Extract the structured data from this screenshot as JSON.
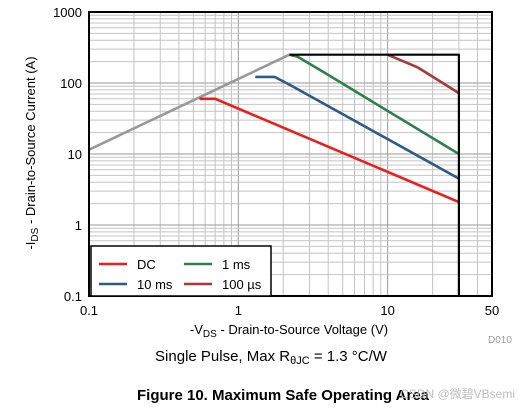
{
  "chart_data": {
    "type": "line",
    "x_scale": "log",
    "y_scale": "log",
    "xlim": [
      0.1,
      50
    ],
    "ylim": [
      0.1,
      1000
    ],
    "grid": true,
    "legend_placement": "bottom-left",
    "x_ticks": [
      {
        "value": 0.1,
        "label": "0.1"
      },
      {
        "value": 1,
        "label": "1"
      },
      {
        "value": 10,
        "label": "10"
      },
      {
        "value": 50,
        "label": "50"
      }
    ],
    "y_ticks": [
      {
        "value": 0.1,
        "label": "0.1"
      },
      {
        "value": 1,
        "label": "1"
      },
      {
        "value": 10,
        "label": "10"
      },
      {
        "value": 100,
        "label": "100"
      },
      {
        "value": 1000,
        "label": "1000"
      }
    ],
    "xlabel": {
      "pre": "-V",
      "sub": "DS",
      "post": " - Drain-to-Source Voltage (V)"
    },
    "ylabel": {
      "pre": "-I",
      "sub": "DS",
      "post": " - Drain-to-Source Current (A)"
    },
    "caption": {
      "pre": "Single Pulse, Max R",
      "sub": "θJC",
      "post": " = 1.3 °C/W"
    },
    "code": "D010",
    "figure_title": "Figure 10. Maximum Safe Operating Area",
    "series": [
      {
        "name": "",
        "color": "#999999",
        "points": [
          [
            0.1,
            11.5
          ],
          [
            2.2,
            250
          ]
        ]
      },
      {
        "name": "DC",
        "color": "#e8201b",
        "points": [
          [
            0.55,
            60
          ],
          [
            0.7,
            60
          ],
          [
            30,
            2.1
          ]
        ]
      },
      {
        "name": "10 ms",
        "color": "#2e5a86",
        "points": [
          [
            1.3,
            122
          ],
          [
            1.75,
            122
          ],
          [
            2.2,
            95
          ],
          [
            30,
            4.5
          ]
        ]
      },
      {
        "name": "1 ms",
        "color": "#2f7f4e",
        "points": [
          [
            2.2,
            250
          ],
          [
            2.5,
            235
          ],
          [
            4,
            130
          ],
          [
            30,
            10
          ]
        ]
      },
      {
        "name": "100 µs",
        "color": "#a8393b",
        "points": [
          [
            10,
            250
          ],
          [
            16,
            165
          ],
          [
            30,
            72
          ]
        ]
      },
      {
        "name": "",
        "color": "#000000",
        "points": [
          [
            2.2,
            250
          ],
          [
            30,
            250
          ],
          [
            30,
            0.1
          ]
        ]
      }
    ],
    "legend": [
      {
        "label": "DC",
        "color": "#e8201b"
      },
      {
        "label": "1 ms",
        "color": "#2f7f4e"
      },
      {
        "label": "10 ms",
        "color": "#2e5a86"
      },
      {
        "label": "100 µs",
        "color": "#a8393b"
      }
    ]
  },
  "watermark": "CSDN @微碧VBsemi"
}
